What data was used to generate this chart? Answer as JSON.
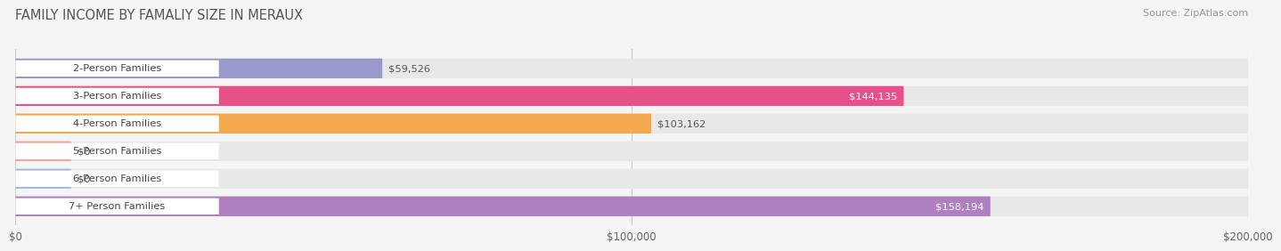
{
  "title": "FAMILY INCOME BY FAMALIY SIZE IN MERAUX",
  "source": "Source: ZipAtlas.com",
  "categories": [
    "2-Person Families",
    "3-Person Families",
    "4-Person Families",
    "5-Person Families",
    "6-Person Families",
    "7+ Person Families"
  ],
  "values": [
    59526,
    144135,
    103162,
    0,
    0,
    158194
  ],
  "bar_colors": [
    "#9999cc",
    "#e8508a",
    "#f5a84e",
    "#f5a0a0",
    "#a0bce0",
    "#b07fc0"
  ],
  "bar_bg_color": "#e8e8e8",
  "xlim": [
    0,
    200000
  ],
  "xtick_labels": [
    "$0",
    "$100,000",
    "$200,000"
  ],
  "background_color": "#f5f5f5",
  "title_fontsize": 10.5,
  "bar_height": 0.72,
  "value_labels": [
    "$59,526",
    "$144,135",
    "$103,162",
    "$0",
    "$0",
    "$158,194"
  ],
  "value_inside": [
    false,
    true,
    false,
    false,
    false,
    true
  ]
}
